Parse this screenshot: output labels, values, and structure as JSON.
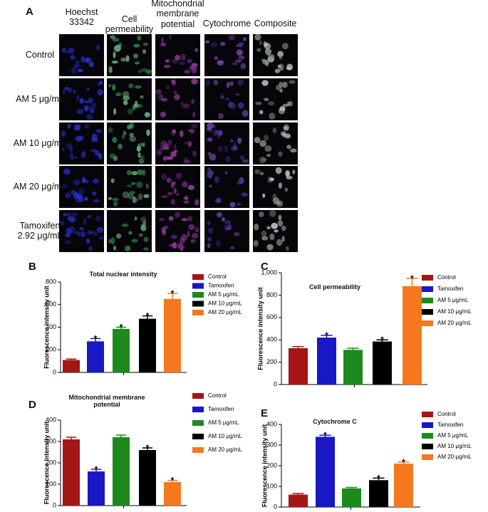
{
  "panel_a": {
    "letter": "A",
    "columns": [
      "Hoechst 33342",
      "Cell permeability",
      "Mitochondrial membrane potential",
      "Cytochrome",
      "Composite"
    ],
    "rows": [
      "Control",
      "AM 5 μg/mL",
      "AM 10 μg/mL",
      "AM 20 μg/mL",
      "Tamoxifen 2.92 μg/mL"
    ]
  },
  "chart_data": [
    {
      "type": "bar",
      "letter": "B",
      "title": "Total nuclear intensity",
      "y_label": "Fluorescence intensity unit",
      "categories": [
        "Control",
        "Tamoxifen",
        "AM 5 μg/mL",
        "AM 10 μg/mL",
        "AM 20 μg/mL"
      ],
      "colors": [
        "#a51616",
        "#1818c4",
        "#1c8a1c",
        "#000000",
        "#f5781e"
      ],
      "values": [
        110,
        275,
        385,
        475,
        650
      ],
      "errors": [
        8,
        25,
        15,
        25,
        50
      ],
      "markers": [
        null,
        "*",
        "*",
        "*",
        "*"
      ],
      "ylim": [
        0,
        800
      ],
      "yticks": [
        0,
        200,
        400,
        600,
        800
      ]
    },
    {
      "type": "bar",
      "letter": "C",
      "title": "Cell permeability",
      "y_label": "Fluorescence intensity unit",
      "categories": [
        "Control",
        "Tamoxifen",
        "AM 5 μg/mL",
        "AM 10 μg/mL",
        "AM 20 μg/mL"
      ],
      "colors": [
        "#a51616",
        "#1818c4",
        "#1c8a1c",
        "#000000",
        "#f5781e"
      ],
      "values": [
        325,
        420,
        310,
        385,
        880
      ],
      "errors": [
        15,
        20,
        15,
        15,
        70
      ],
      "markers": [
        null,
        "*",
        null,
        "*",
        "*"
      ],
      "ylim": [
        0,
        1000
      ],
      "yticks": [
        0,
        200,
        400,
        600,
        800,
        {
          "value": 1000,
          "label": "1,000"
        }
      ]
    },
    {
      "type": "bar",
      "letter": "D",
      "title": "Mitochondrial membrane potential",
      "y_label": "Fluorescence intensity unit",
      "categories": [
        "Control",
        "Tamoxifen",
        "AM 5 μg/mL",
        "AM 10 μg/mL",
        "AM 20 μg/mL"
      ],
      "colors": [
        "#a51616",
        "#1818c4",
        "#1c8a1c",
        "#000000",
        "#f5781e"
      ],
      "values": [
        310,
        160,
        320,
        260,
        110
      ],
      "errors": [
        10,
        10,
        10,
        10,
        8
      ],
      "markers": [
        null,
        "*",
        null,
        "*",
        "*"
      ],
      "ylim": [
        0,
        400
      ],
      "yticks": [
        0,
        100,
        200,
        300,
        400
      ]
    },
    {
      "type": "bar",
      "letter": "E",
      "title": "Cytochrome C",
      "y_label": "Fluorescence intensity unit",
      "categories": [
        "Control",
        "Tamoxifen",
        "AM 5 μg/mL",
        "AM 10 μg/mL",
        "AM 20 μg/mL"
      ],
      "colors": [
        "#a51616",
        "#1818c4",
        "#1c8a1c",
        "#000000",
        "#f5781e"
      ],
      "values": [
        60,
        340,
        90,
        130,
        210
      ],
      "errors": [
        5,
        8,
        5,
        10,
        8
      ],
      "markers": [
        null,
        "*",
        null,
        "*",
        "*"
      ],
      "ylim": [
        0,
        400
      ],
      "yticks": [
        0,
        100,
        200,
        300,
        400
      ]
    }
  ]
}
